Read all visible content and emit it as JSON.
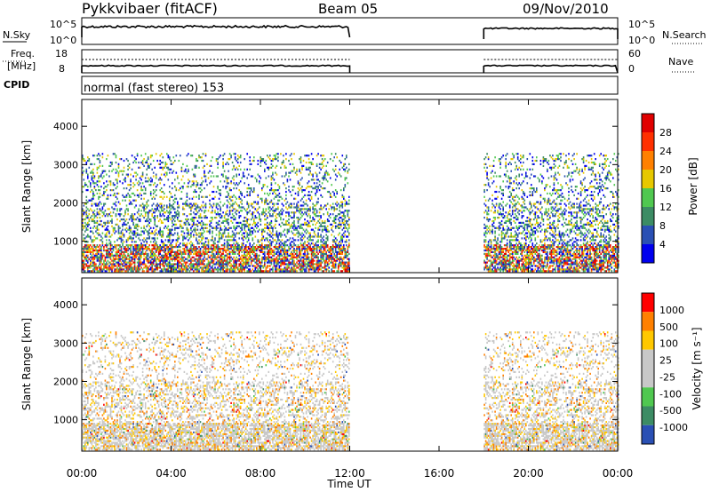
{
  "header": {
    "title": "Pykkvibaer (fitACF)",
    "beam": "Beam 05",
    "date": "09/Nov/2010",
    "cpid_label": "CPID",
    "cpid_text": "normal (fast stereo) 153"
  },
  "top_panels": {
    "nsky_label": "N.Sky",
    "nsearch_label": "N.Search",
    "freq_label_1": "Freq.",
    "freq_label_2": "[MHz]",
    "nave_label": "Nave",
    "nsky_ticks": [
      "10^5",
      "10^0"
    ],
    "nsearch_ticks": [
      "10^5",
      "10^0"
    ],
    "freq_ticks": [
      "18",
      "8"
    ],
    "nave_ticks": [
      "60",
      "0"
    ]
  },
  "chart_data": [
    {
      "type": "heatmap",
      "name": "power",
      "ylabel": "Slant Range [km]",
      "xlabel": "Time UT",
      "ylim": [
        180,
        4700
      ],
      "xlim": [
        0,
        24
      ],
      "ytick_labels": [
        "1000",
        "2000",
        "3000",
        "4000"
      ],
      "ytick_values": [
        1000,
        2000,
        3000,
        4000
      ],
      "colorbar_label": "Power [dB]",
      "colorbar_ticks": [
        "4",
        "8",
        "12",
        "16",
        "20",
        "24",
        "28"
      ],
      "colorbar_colors": [
        "#0000ee",
        "#2a50b4",
        "#3c8c64",
        "#50c850",
        "#e6c800",
        "#ff8000",
        "#ff3000",
        "#e00000"
      ],
      "regions": [
        {
          "t0": 0.0,
          "t1": 12.0,
          "r0": 200,
          "r1": 3300
        },
        {
          "t0": 18.0,
          "t1": 24.0,
          "r0": 200,
          "r1": 3300
        }
      ]
    },
    {
      "type": "heatmap",
      "name": "velocity",
      "ylabel": "Slant Range [km]",
      "xlabel": "Time UT",
      "ylim": [
        180,
        4700
      ],
      "xlim": [
        0,
        24
      ],
      "ytick_labels": [
        "1000",
        "2000",
        "3000",
        "4000"
      ],
      "ytick_values": [
        1000,
        2000,
        3000,
        4000
      ],
      "colorbar_label": "Velocity [m s⁻¹]",
      "colorbar_ticks": [
        "1000",
        "500",
        "100",
        "25",
        "-25",
        "-100",
        "-500",
        "-1000"
      ],
      "colorbar_colors": [
        "#2a50b4",
        "#3c8c64",
        "#50c850",
        "#c8c8c8",
        "#c8c8c8",
        "#ffc800",
        "#ff8000",
        "#ff0000"
      ],
      "regions": [
        {
          "t0": 0.0,
          "t1": 12.0,
          "r0": 200,
          "r1": 3300
        },
        {
          "t0": 18.0,
          "t1": 24.0,
          "r0": 200,
          "r1": 3300
        }
      ]
    }
  ],
  "xaxis": {
    "label": "Time UT",
    "tick_labels": [
      "00:00",
      "04:00",
      "08:00",
      "12:00",
      "16:00",
      "20:00",
      "00:00"
    ],
    "tick_values": [
      0,
      4,
      8,
      12,
      16,
      20,
      24
    ]
  },
  "colors": {
    "axis": "#000000",
    "background": "#ffffff"
  }
}
